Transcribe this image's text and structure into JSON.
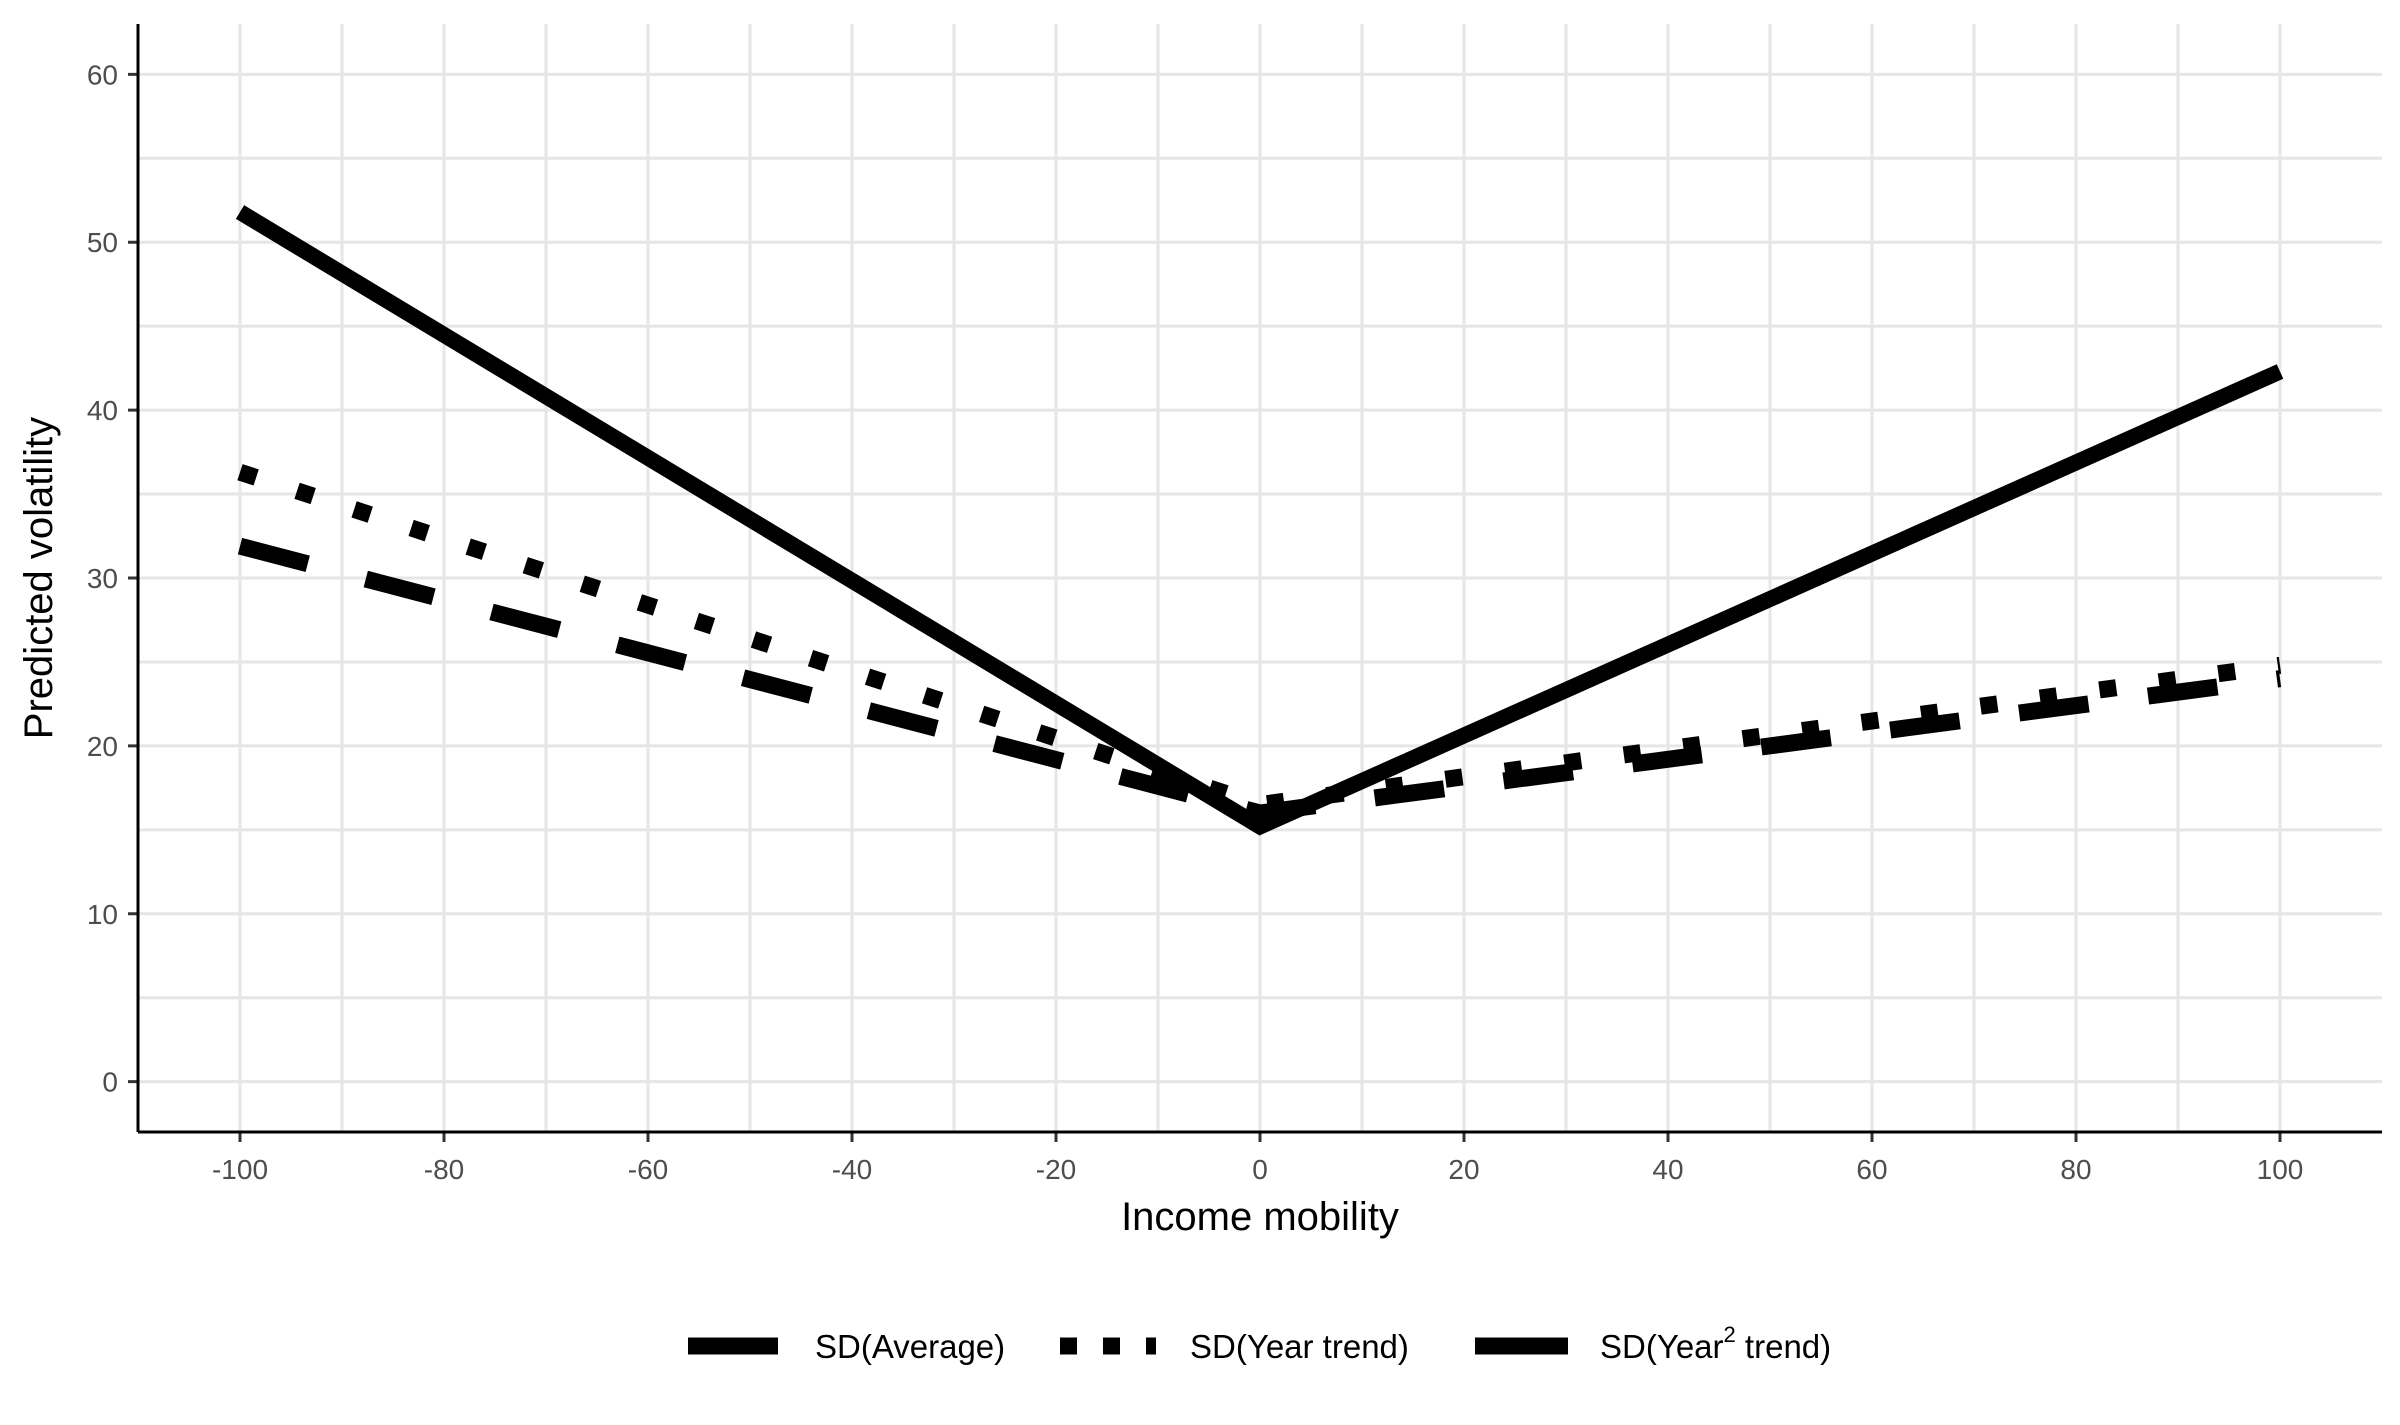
{
  "chart_data": {
    "type": "line",
    "xlabel": "Income mobility",
    "ylabel": "Predicted volatility",
    "xlim": [
      -110,
      110
    ],
    "ylim": [
      -3,
      63
    ],
    "x_ticks": [
      -100,
      -80,
      -60,
      -40,
      -20,
      0,
      20,
      40,
      60,
      80,
      100
    ],
    "y_ticks": [
      0,
      10,
      20,
      30,
      40,
      50,
      60
    ],
    "x_tick_labels": [
      "-100",
      "-80",
      "-60",
      "-40",
      "-20",
      "0",
      "20",
      "40",
      "60",
      "80",
      "100"
    ],
    "y_tick_labels": [
      "0",
      "10",
      "20",
      "30",
      "40",
      "50",
      "60"
    ],
    "grid": true,
    "legend_position": "bottom",
    "series": [
      {
        "name": "SD(Average)",
        "line_style": "solid",
        "x": [
          -100,
          0,
          100
        ],
        "y": [
          51.8,
          15.2,
          42.3
        ]
      },
      {
        "name": "SD(Year trend)",
        "line_style": "dotted",
        "x": [
          -100,
          0,
          100
        ],
        "y": [
          36.3,
          16.5,
          24.8
        ]
      },
      {
        "name": "SD(Year² trend)",
        "name_base": "SD(Year",
        "name_sup": "2",
        "name_rest": " trend)",
        "line_style": "dashed",
        "x": [
          -100,
          0,
          100
        ],
        "y": [
          31.9,
          16.0,
          24.0
        ]
      }
    ],
    "colors": {
      "line": "#000000",
      "grid": "#e6e6e6",
      "tick_text": "#4d4d4d"
    }
  }
}
